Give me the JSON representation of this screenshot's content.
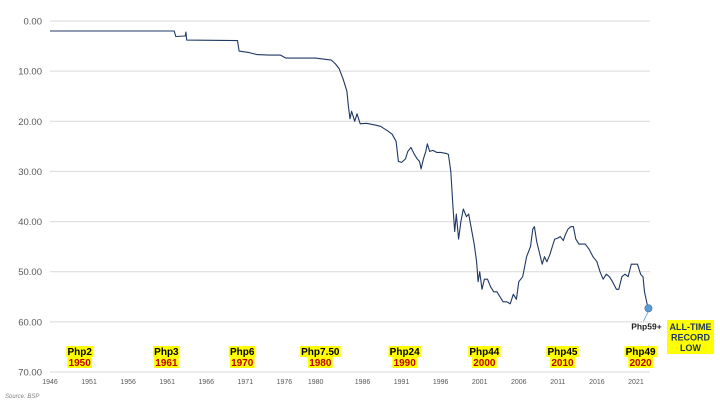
{
  "chart_data": {
    "type": "line",
    "title": "",
    "xlabel": "",
    "ylabel": "",
    "x_range": [
      1946,
      2022.8
    ],
    "ylim": [
      0,
      70
    ],
    "y_inverted": true,
    "y_ticks": [
      "0.00",
      "10.00",
      "20.00",
      "30.00",
      "40.00",
      "50.00",
      "60.00",
      "70.00"
    ],
    "x_ticks": [
      "1946",
      "1951",
      "1956",
      "1961",
      "1966",
      "1971",
      "1976",
      "1980",
      "1986",
      "1991",
      "1996",
      "2001",
      "2006",
      "2011",
      "2016",
      "2021"
    ],
    "grid": true,
    "series": [
      {
        "color": "#1f3864",
        "points": [
          [
            1946,
            2.0
          ],
          [
            1961.9,
            2.0
          ],
          [
            1962.1,
            3.1
          ],
          [
            1963.3,
            3.0
          ],
          [
            1963.4,
            2.2
          ],
          [
            1963.5,
            3.8
          ],
          [
            1970.0,
            3.9
          ],
          [
            1970.2,
            6.0
          ],
          [
            1971.5,
            6.3
          ],
          [
            1972.5,
            6.7
          ],
          [
            1974.0,
            6.8
          ],
          [
            1975.5,
            6.8
          ],
          [
            1976.2,
            7.4
          ],
          [
            1977.5,
            7.4
          ],
          [
            1980.0,
            7.4
          ],
          [
            1981.0,
            7.6
          ],
          [
            1982.0,
            7.8
          ],
          [
            1982.5,
            8.5
          ],
          [
            1983.0,
            9.5
          ],
          [
            1983.5,
            11.5
          ],
          [
            1984.0,
            14.0
          ],
          [
            1984.2,
            17.0
          ],
          [
            1984.4,
            19.5
          ],
          [
            1984.6,
            18.0
          ],
          [
            1985.0,
            20.0
          ],
          [
            1985.3,
            18.5
          ],
          [
            1985.7,
            20.5
          ],
          [
            1986.5,
            20.4
          ],
          [
            1987.5,
            20.7
          ],
          [
            1988.3,
            21.0
          ],
          [
            1988.8,
            21.5
          ],
          [
            1989.3,
            22.0
          ],
          [
            1989.8,
            22.6
          ],
          [
            1990.3,
            24.0
          ],
          [
            1990.6,
            28.0
          ],
          [
            1991.0,
            28.2
          ],
          [
            1991.5,
            27.5
          ],
          [
            1991.8,
            26.0
          ],
          [
            1992.2,
            25.2
          ],
          [
            1992.6,
            26.5
          ],
          [
            1993.0,
            27.5
          ],
          [
            1993.3,
            28.0
          ],
          [
            1993.5,
            29.5
          ],
          [
            1993.8,
            27.5
          ],
          [
            1994.1,
            26.0
          ],
          [
            1994.3,
            24.5
          ],
          [
            1994.6,
            26.0
          ],
          [
            1995.0,
            25.8
          ],
          [
            1995.5,
            26.2
          ],
          [
            1996.0,
            26.2
          ],
          [
            1996.7,
            26.4
          ],
          [
            1997.0,
            26.6
          ],
          [
            1997.3,
            30.0
          ],
          [
            1997.6,
            37.5
          ],
          [
            1997.8,
            42.0
          ],
          [
            1998.0,
            38.5
          ],
          [
            1998.3,
            43.5
          ],
          [
            1998.6,
            40.0
          ],
          [
            1998.9,
            37.5
          ],
          [
            1999.3,
            39.0
          ],
          [
            1999.6,
            38.5
          ],
          [
            2000.0,
            42.0
          ],
          [
            2000.3,
            44.5
          ],
          [
            2000.6,
            48.0
          ],
          [
            2000.8,
            52.0
          ],
          [
            2001.0,
            50.0
          ],
          [
            2001.3,
            53.5
          ],
          [
            2001.6,
            51.5
          ],
          [
            2002.0,
            51.5
          ],
          [
            2002.4,
            53.0
          ],
          [
            2002.8,
            54.0
          ],
          [
            2003.2,
            54.0
          ],
          [
            2003.6,
            55.0
          ],
          [
            2004.0,
            56.0
          ],
          [
            2004.5,
            56.0
          ],
          [
            2004.9,
            56.4
          ],
          [
            2005.3,
            54.5
          ],
          [
            2005.7,
            55.5
          ],
          [
            2006.0,
            52.0
          ],
          [
            2006.5,
            51.0
          ],
          [
            2007.0,
            47.0
          ],
          [
            2007.5,
            45.0
          ],
          [
            2007.8,
            41.5
          ],
          [
            2008.0,
            41.0
          ],
          [
            2008.3,
            44.0
          ],
          [
            2008.7,
            46.5
          ],
          [
            2009.0,
            48.5
          ],
          [
            2009.3,
            47.0
          ],
          [
            2009.6,
            48.0
          ],
          [
            2010.0,
            46.5
          ],
          [
            2010.3,
            45.0
          ],
          [
            2010.6,
            43.5
          ],
          [
            2011.0,
            43.3
          ],
          [
            2011.3,
            43.0
          ],
          [
            2011.7,
            43.8
          ],
          [
            2012.0,
            42.5
          ],
          [
            2012.3,
            41.5
          ],
          [
            2012.7,
            41.0
          ],
          [
            2013.0,
            41.0
          ],
          [
            2013.3,
            43.5
          ],
          [
            2013.7,
            44.5
          ],
          [
            2014.0,
            44.5
          ],
          [
            2014.5,
            44.5
          ],
          [
            2015.0,
            45.5
          ],
          [
            2015.5,
            47.0
          ],
          [
            2016.0,
            48.0
          ],
          [
            2016.4,
            50.0
          ],
          [
            2016.8,
            51.5
          ],
          [
            2017.2,
            50.5
          ],
          [
            2017.6,
            51.0
          ],
          [
            2018.0,
            52.0
          ],
          [
            2018.5,
            53.5
          ],
          [
            2018.8,
            53.5
          ],
          [
            2019.2,
            51.0
          ],
          [
            2019.6,
            50.5
          ],
          [
            2020.0,
            51.0
          ],
          [
            2020.4,
            48.5
          ],
          [
            2020.8,
            48.5
          ],
          [
            2021.2,
            48.5
          ],
          [
            2021.6,
            50.5
          ],
          [
            2021.9,
            51.0
          ],
          [
            2022.1,
            54.0
          ],
          [
            2022.3,
            55.5
          ],
          [
            2022.5,
            57.0
          ],
          [
            2022.6,
            57.3
          ]
        ]
      }
    ],
    "highlight_point": {
      "x": 2022.6,
      "y": 57.3,
      "label": "Php59+",
      "color": "#5b9bd5"
    },
    "annotations": [
      {
        "value": "Php2",
        "year": "1950",
        "x": 1949.8
      },
      {
        "value": "Php3",
        "year": "1961",
        "x": 1960.9
      },
      {
        "value": "Php6",
        "year": "1970",
        "x": 1970.6
      },
      {
        "value": "Php7.50",
        "year": "1980",
        "x": 1980.6
      },
      {
        "value": "Php24",
        "year": "1990",
        "x": 1991.4
      },
      {
        "value": "Php44",
        "year": "2000",
        "x": 2001.6
      },
      {
        "value": "Php45",
        "year": "2010",
        "x": 2011.6
      },
      {
        "value": "Php49",
        "year": "2020",
        "x": 2021.6
      }
    ],
    "record_note": [
      "ALL-TIME",
      "RECORD",
      "LOW"
    ]
  },
  "colors": {
    "highlight": "#ffff00",
    "year_text": "#c00000",
    "line": "#1f3864",
    "grid": "#d9d9d9"
  },
  "source": "Source: BSP"
}
